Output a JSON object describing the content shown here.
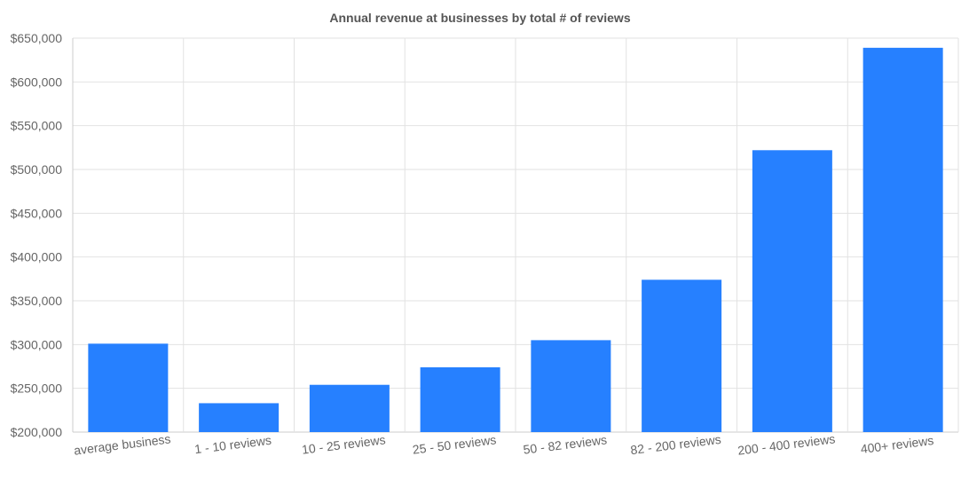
{
  "chart_data": {
    "type": "bar",
    "title": "Annual revenue at businesses by total # of reviews",
    "xlabel": "",
    "ylabel": "",
    "categories": [
      "average business",
      "1 - 10 reviews",
      "10 - 25 reviews",
      "25 - 50 reviews",
      "50 - 82 reviews",
      "82 - 200 reviews",
      "200 - 400 reviews",
      "400+ reviews"
    ],
    "values": [
      301000,
      233000,
      254000,
      274000,
      305000,
      374000,
      522000,
      639000
    ],
    "ylim": [
      200000,
      650000
    ],
    "yticks": [
      200000,
      250000,
      300000,
      350000,
      400000,
      450000,
      500000,
      550000,
      600000,
      650000
    ],
    "ytick_labels": [
      "$200,000",
      "$250,000",
      "$300,000",
      "$350,000",
      "$400,000",
      "$450,000",
      "$500,000",
      "$550,000",
      "$600,000",
      "$650,000"
    ],
    "grid": true,
    "legend": "none",
    "bar_color": "#2680ff",
    "grid_color": "#e2e2e2"
  }
}
